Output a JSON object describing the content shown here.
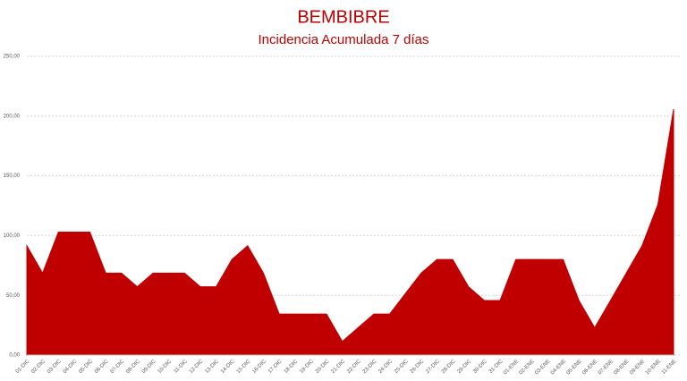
{
  "chart_data": {
    "type": "area",
    "title": "BEMBIBRE",
    "subtitle": "Incidencia Acumulada 7 días",
    "categories": [
      "01-DIC",
      "02-DIC",
      "03-DIC",
      "04-DIC",
      "05-DIC",
      "06-DIC",
      "07-DIC",
      "08-DIC",
      "09-DIC",
      "10-DIC",
      "11-DIC",
      "12-DIC",
      "13-DIC",
      "14-DIC",
      "15-DIC",
      "16-DIC",
      "17-DIC",
      "18-DIC",
      "19-DIC",
      "20-DIC",
      "21-DIC",
      "22-DIC",
      "23-DIC",
      "24-DIC",
      "25-DIC",
      "26-DIC",
      "27-DIC",
      "28-DIC",
      "29-DIC",
      "30-DIC",
      "31-DIC",
      "01-ENE",
      "02-ENE",
      "03-ENE",
      "04-ENE",
      "05-ENE",
      "06-ENE",
      "07-ENE",
      "08-ENE",
      "09-ENE",
      "10-ENE",
      "11-ENE"
    ],
    "values": [
      91.5,
      68.6,
      102.9,
      102.9,
      102.9,
      68.6,
      68.6,
      57.2,
      68.6,
      68.6,
      68.6,
      57.2,
      57.2,
      80,
      91.5,
      68.6,
      34.3,
      34.3,
      34.3,
      34.3,
      11.4,
      22.9,
      34.3,
      34.3,
      51.5,
      68.6,
      80,
      80,
      57.2,
      45.7,
      45.7,
      80,
      80,
      80,
      80,
      45.7,
      22.9,
      45.7,
      68.6,
      91.5,
      125.8,
      205.8
    ],
    "color": "#c00000",
    "ylim": [
      0,
      250
    ],
    "yticks": [
      {
        "value": 0,
        "label": "0,00"
      },
      {
        "value": 50,
        "label": "50,00"
      },
      {
        "value": 100,
        "label": "100,00"
      },
      {
        "value": 150,
        "label": "150,00"
      },
      {
        "value": 200,
        "label": "200,00"
      },
      {
        "value": 250,
        "label": "250,00"
      }
    ],
    "grid": true
  }
}
